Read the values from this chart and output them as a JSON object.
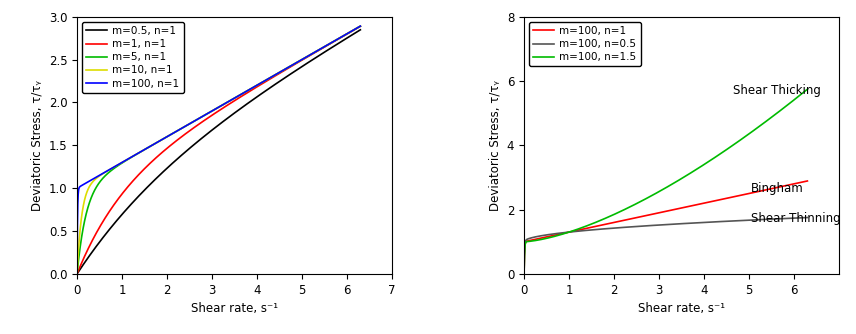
{
  "left_plot": {
    "xlabel": "Shear rate, s⁻¹",
    "ylabel": "Deviatoric Stress, τ/τᵧ",
    "xlim": [
      0,
      7
    ],
    "ylim": [
      0,
      3.0
    ],
    "xticks": [
      0,
      1,
      2,
      3,
      4,
      5,
      6,
      7
    ],
    "yticks": [
      0.0,
      0.5,
      1.0,
      1.5,
      2.0,
      2.5,
      3.0
    ],
    "K": 0.3,
    "curves": [
      {
        "m": 0.5,
        "n": 1,
        "color": "#000000",
        "label": "m=0.5, n=1"
      },
      {
        "m": 1,
        "n": 1,
        "color": "#ff0000",
        "label": "m=1, n=1"
      },
      {
        "m": 5,
        "n": 1,
        "color": "#00bb00",
        "label": "m=5, n=1"
      },
      {
        "m": 10,
        "n": 1,
        "color": "#dddd00",
        "label": "m=10, n=1"
      },
      {
        "m": 100,
        "n": 1,
        "color": "#0000ff",
        "label": "m=100, n=1"
      }
    ]
  },
  "right_plot": {
    "xlabel": "Shear rate, s⁻¹",
    "ylabel": "Deviatoric Stress, τ/τᵧ",
    "xlim": [
      0,
      7
    ],
    "ylim": [
      0,
      8
    ],
    "xticks": [
      0,
      1,
      2,
      3,
      4,
      5,
      6
    ],
    "yticks": [
      0,
      2,
      4,
      6,
      8
    ],
    "K": 0.3,
    "curves": [
      {
        "m": 100,
        "n": 1,
        "color": "#ff0000",
        "label": "m=100, n=1",
        "annotation": "Bingham",
        "ann_x": 5.05,
        "ann_y": 2.55
      },
      {
        "m": 100,
        "n": 0.5,
        "color": "#555555",
        "label": "m=100, n=0.5",
        "annotation": "Shear Thinning",
        "ann_x": 5.05,
        "ann_y": 1.6
      },
      {
        "m": 100,
        "n": 1.5,
        "color": "#00bb00",
        "label": "m=100, n=1.5",
        "annotation": "Shear Thicking",
        "ann_x": 4.65,
        "ann_y": 5.6
      }
    ]
  },
  "figure_bg": "#ffffff",
  "axes_bg": "#ffffff",
  "spine_color": "#000000",
  "tick_color": "#000000",
  "label_color": "#000000",
  "legend_fontsize": 7.5,
  "axis_label_fontsize": 8.5,
  "tick_fontsize": 8.5,
  "annotation_fontsize": 8.5,
  "line_width": 1.2
}
